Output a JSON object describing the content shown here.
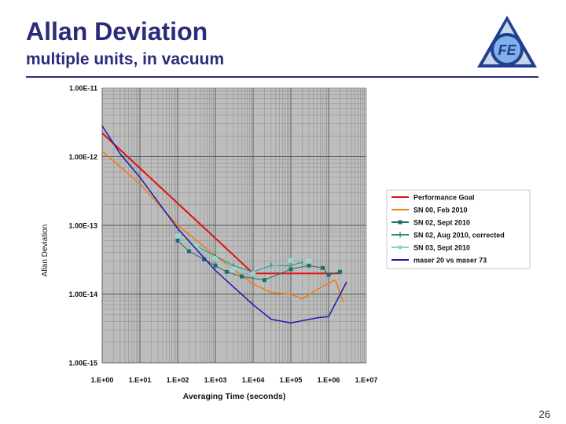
{
  "slide": {
    "title": "Allan Deviation",
    "subtitle": "multiple units, in vacuum",
    "page_number": "26"
  },
  "logo": {
    "text": "FE",
    "colors": [
      "#1f3f8f",
      "#7fb0e8",
      "#c8d6ea"
    ]
  },
  "chart_data": {
    "type": "line",
    "xlabel": "Averaging Time (seconds)",
    "ylabel": "Allan Deviation",
    "x_scale": "log",
    "y_scale": "log",
    "xlim": [
      1,
      10000000
    ],
    "ylim": [
      1e-15,
      1e-11
    ],
    "x_ticks": [
      "1.E+00",
      "1.E+01",
      "1.E+02",
      "1.E+03",
      "1.E+04",
      "1.E+05",
      "1.E+06",
      "1.E+07"
    ],
    "y_ticks": [
      "1.00E-11",
      "1.00E-12",
      "1.00E-13",
      "1.00E-14",
      "1.00E-15"
    ],
    "grid": true,
    "plot_background": "#bdbdbd",
    "legend_position": "right",
    "series": [
      {
        "name": "Performance Goal",
        "color": "#e01010",
        "marker": "none",
        "width": 2,
        "points": [
          [
            1,
            2.2e-12
          ],
          [
            10000,
            2e-14
          ],
          [
            2000000,
            2e-14
          ]
        ]
      },
      {
        "name": "SN 00, Feb 2010",
        "color": "#f07d10",
        "marker": "none",
        "width": 1.5,
        "points": [
          [
            1,
            1.2e-12
          ],
          [
            10,
            4e-13
          ],
          [
            100,
            1e-13
          ],
          [
            1000,
            3.6e-14
          ],
          [
            10000,
            1.4e-14
          ],
          [
            30000,
            1.05e-14
          ],
          [
            100000,
            1e-14
          ],
          [
            200000,
            8.5e-15
          ],
          [
            700000,
            1.3e-14
          ],
          [
            1500000,
            1.6e-14
          ],
          [
            2500000,
            7.5e-15
          ]
        ]
      },
      {
        "name": "SN 02, Sept 2010",
        "color": "#1f6e6e",
        "marker": "square",
        "width": 1,
        "points": [
          [
            100,
            6e-14
          ],
          [
            200,
            4.2e-14
          ],
          [
            500,
            3.2e-14
          ],
          [
            1000,
            2.6e-14
          ],
          [
            2000,
            2.1e-14
          ],
          [
            5000,
            1.8e-14
          ],
          [
            20000,
            1.6e-14
          ],
          [
            100000,
            2.3e-14
          ],
          [
            300000,
            2.6e-14
          ],
          [
            700000,
            2.4e-14
          ],
          [
            1000000,
            1.9e-14
          ],
          [
            2000000,
            2.1e-14
          ]
        ]
      },
      {
        "name": "SN 02, Aug 2010, corrected",
        "color": "#2a8a8a",
        "marker": "bar",
        "width": 1,
        "points": [
          [
            300,
            5e-14
          ],
          [
            1000,
            3.6e-14
          ],
          [
            3000,
            2.6e-14
          ],
          [
            10000,
            2.1e-14
          ],
          [
            30000,
            2.6e-14
          ],
          [
            100000,
            2.6e-14
          ],
          [
            200000,
            2.9e-14
          ]
        ]
      },
      {
        "name": "SN 03, Sept 2010",
        "color": "#7ad8d0",
        "marker": "circle",
        "width": 1,
        "points": [
          [
            100,
            7e-14
          ],
          [
            300,
            5e-14
          ],
          [
            1000,
            3.3e-14
          ],
          [
            3000,
            2.3e-14
          ],
          [
            10000,
            2e-14
          ],
          [
            100000,
            3.1e-14
          ],
          [
            300000,
            3e-14
          ]
        ]
      },
      {
        "name": "maser 20 vs maser 73",
        "color": "#1818b0",
        "marker": "none",
        "width": 1.5,
        "points": [
          [
            1,
            2.8e-12
          ],
          [
            3,
            1.1e-12
          ],
          [
            10,
            5e-13
          ],
          [
            100,
            9e-14
          ],
          [
            1000,
            2.2e-14
          ],
          [
            10000,
            7e-15
          ],
          [
            30000,
            4.3e-15
          ],
          [
            100000,
            3.8e-15
          ],
          [
            500000,
            4.5e-15
          ],
          [
            1000000,
            4.7e-15
          ],
          [
            3000000,
            1.5e-14
          ]
        ]
      }
    ]
  }
}
